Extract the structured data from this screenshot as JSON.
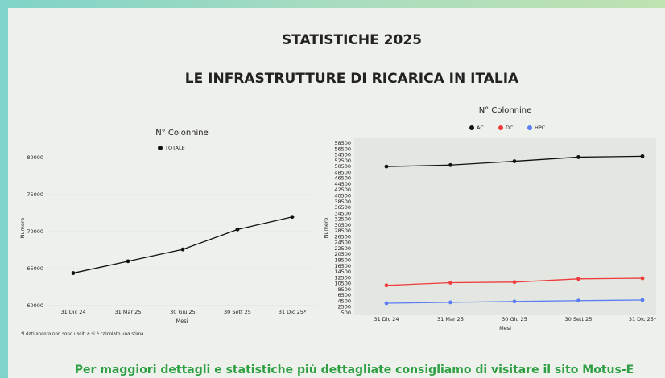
{
  "header": {
    "title": "STATISTICHE 2025",
    "subtitle": "LE INFRASTRUTTURE DI RICARICA IN ITALIA"
  },
  "footnote": "*I dati ancora non sono usciti e si è calcolato una stima",
  "footer": "Per maggiori dettagli e statistiche più dettagliate consigliamo di visitare il sito Motus-E",
  "chart_data": [
    {
      "type": "line",
      "title": "N° Colonnine",
      "x_label": "Mesi",
      "y_label": "Numero",
      "categories": [
        "31 Dic 24",
        "31 Mar 25",
        "30 Giu 25",
        "30 Sett 25",
        "31 Dic 25*"
      ],
      "series": [
        {
          "name": "TOTALE",
          "color": "#111111",
          "values": [
            64400,
            66000,
            67600,
            70300,
            72000
          ]
        }
      ],
      "ylim": [
        60000,
        81000
      ],
      "yticks": [
        60000,
        65000,
        70000,
        75000,
        80000
      ],
      "grid": true
    },
    {
      "type": "line",
      "title": "N° Colonnine",
      "x_label": "Mesi",
      "y_label": "Numero",
      "categories": [
        "31 Dic 24",
        "31 Mar 25",
        "30 Giu 25",
        "30 Sett 25",
        "31 Dic 25*"
      ],
      "series": [
        {
          "name": "AC",
          "color": "#111111",
          "values": [
            50500,
            51000,
            52300,
            53700,
            54000
          ]
        },
        {
          "name": "DC",
          "color": "#ef3b3b",
          "values": [
            9900,
            10800,
            11000,
            12100,
            12300
          ]
        },
        {
          "name": "HPC",
          "color": "#5b7cf5",
          "values": [
            3800,
            4100,
            4400,
            4700,
            4900
          ]
        }
      ],
      "ylim": [
        500,
        58500
      ],
      "yticks": [
        500,
        2500,
        4500,
        6500,
        8500,
        10500,
        12500,
        14500,
        16500,
        18500,
        20500,
        22500,
        24500,
        26500,
        28500,
        30500,
        32500,
        34500,
        36500,
        38500,
        40500,
        42500,
        44500,
        46500,
        48500,
        50500,
        52500,
        54500,
        56500,
        58500
      ],
      "grid": false
    }
  ]
}
